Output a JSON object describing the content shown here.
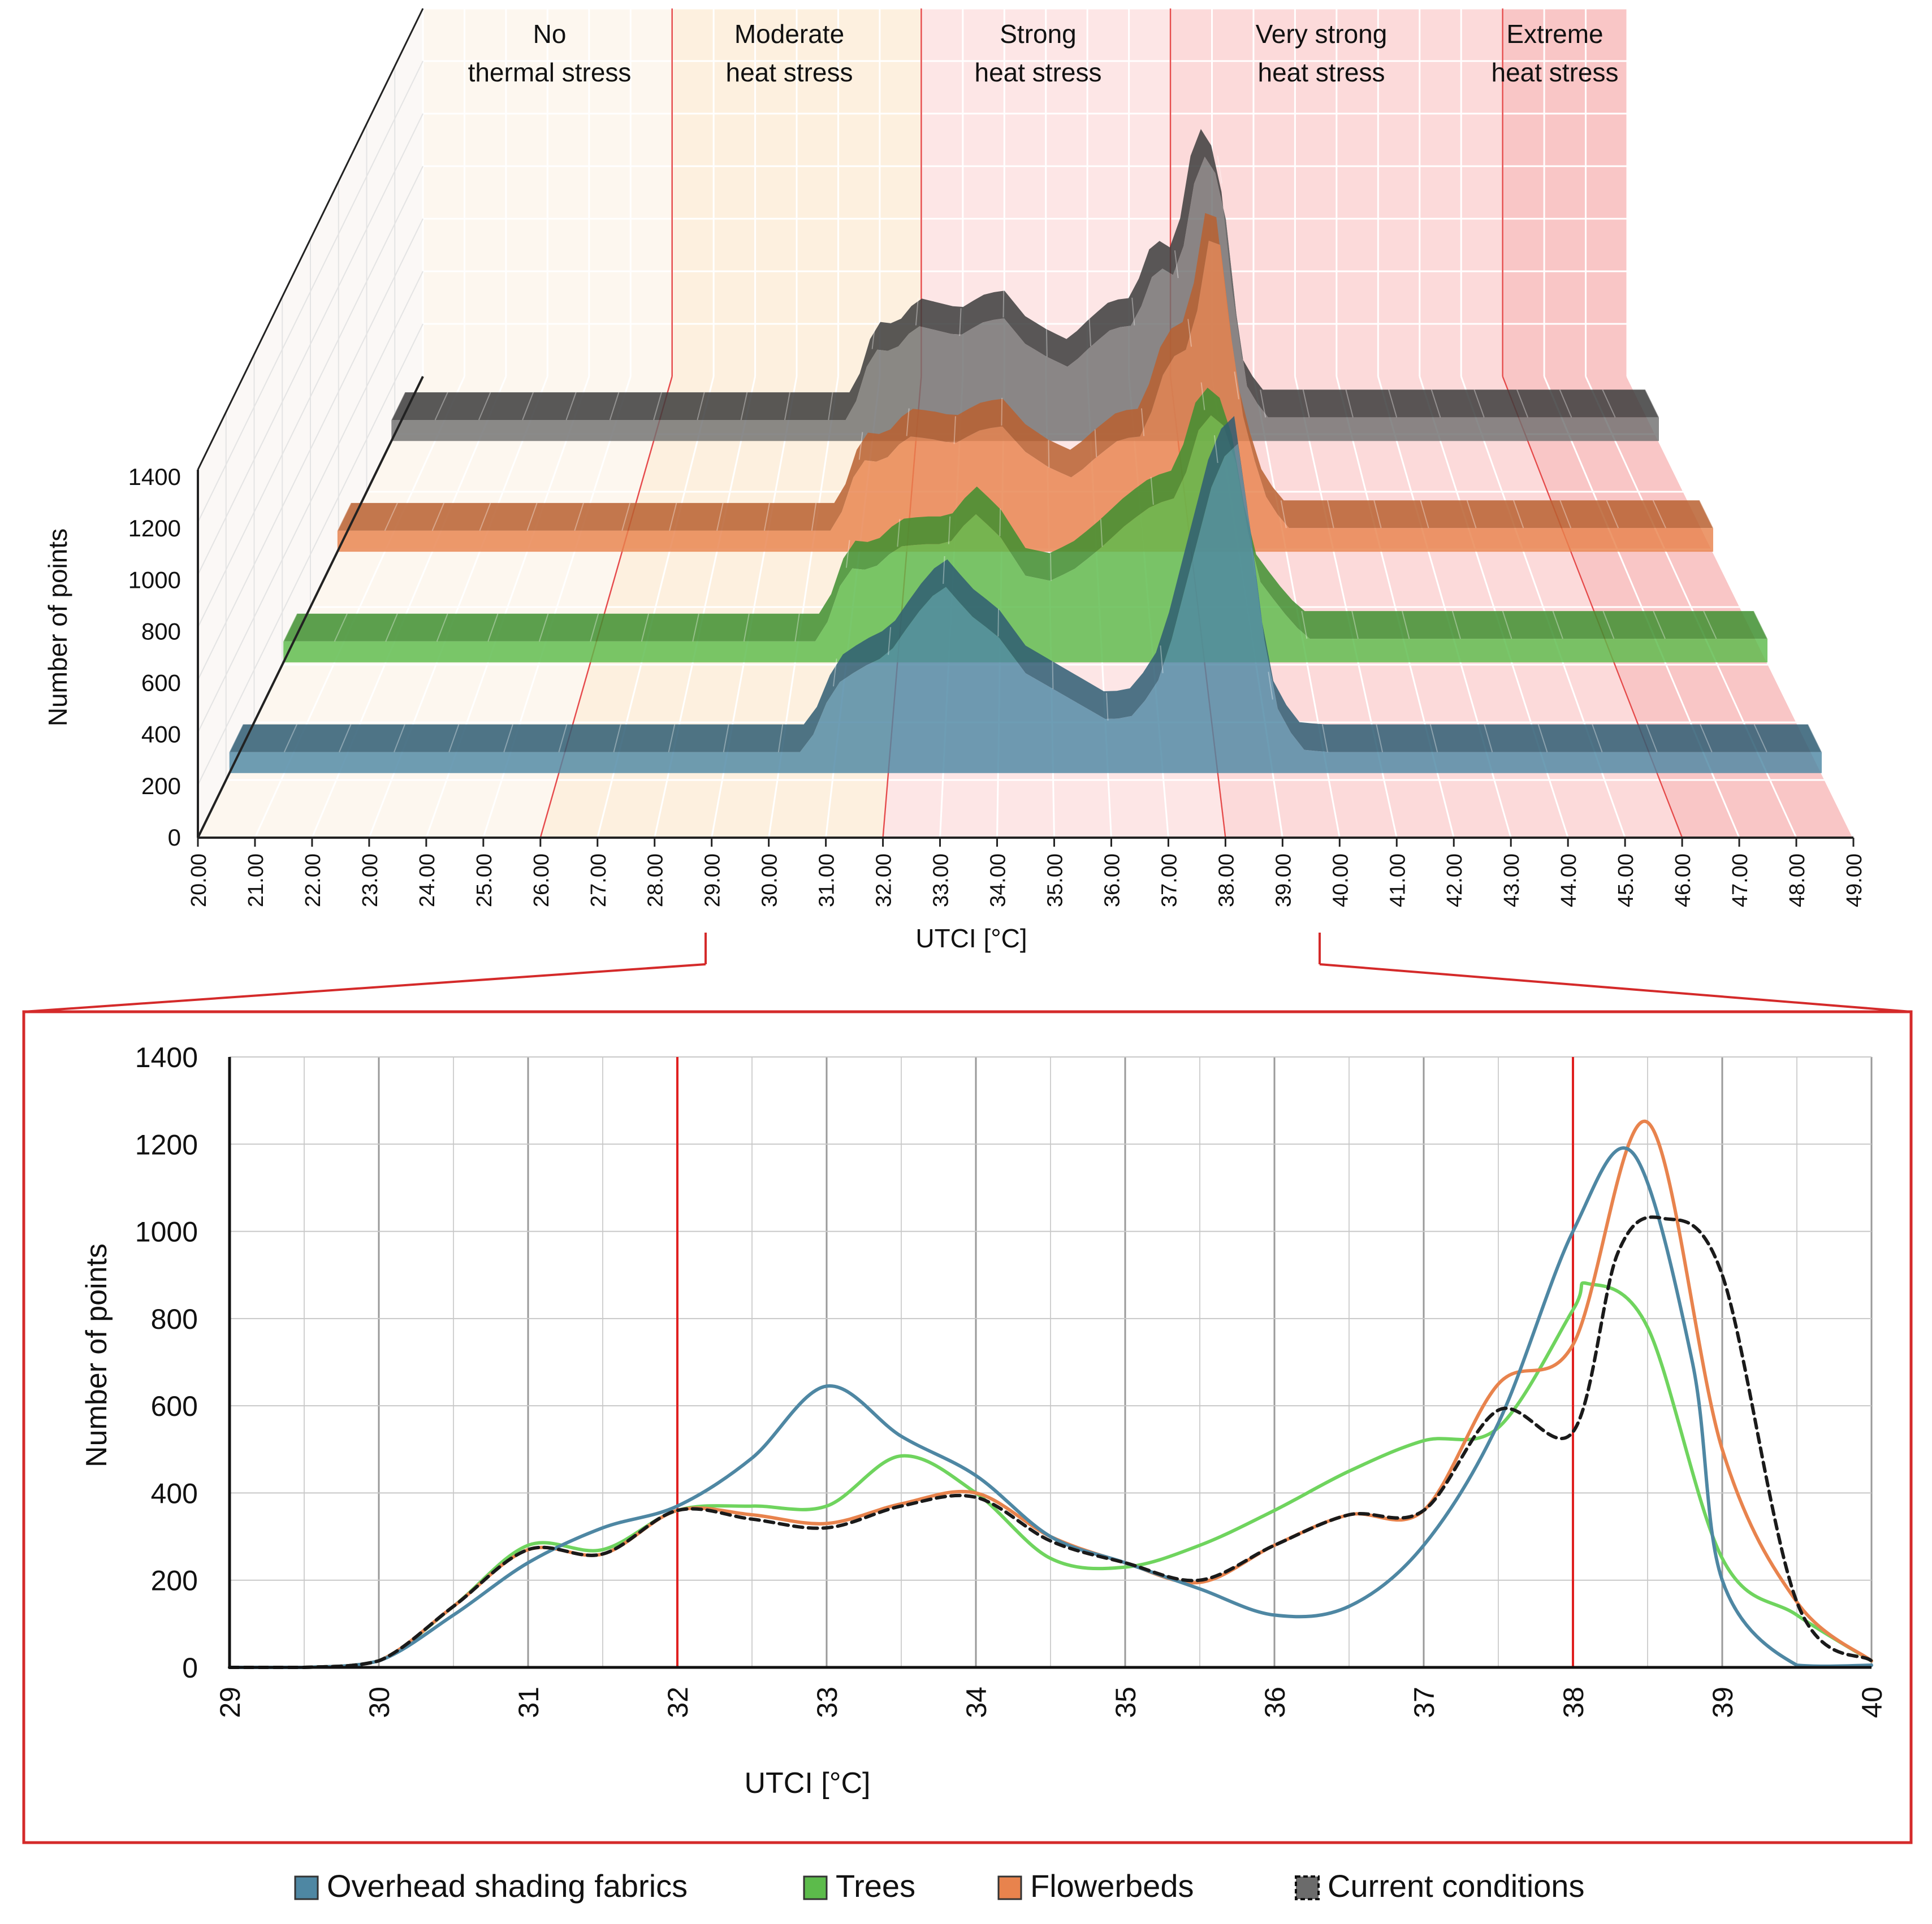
{
  "colors": {
    "overhead": "#4e87a3",
    "trees": "#5cbb4b",
    "flowerbeds": "#e8834d",
    "current": "#6b6b6b",
    "current_line": "#1a1a1a",
    "threshold": "#e02020",
    "frame": "#d42a2a",
    "zone_none": "#fdf7ef",
    "zone_moderate": "#fdf0df",
    "zone_strong": "#fde6e6",
    "zone_very": "#fcdada",
    "zone_extreme": "#f9c6c6"
  },
  "zones": [
    {
      "line1": "No",
      "line2": "thermal stress"
    },
    {
      "line1": "Moderate",
      "line2": "heat stress"
    },
    {
      "line1": "Strong",
      "line2": "heat stress"
    },
    {
      "line1": "Very strong",
      "line2": "heat stress"
    },
    {
      "line1": "Extreme",
      "line2": "heat stress"
    }
  ],
  "legend": [
    {
      "label": "Overhead shading fabrics",
      "color_key": "overhead"
    },
    {
      "label": "Trees",
      "color_key": "trees"
    },
    {
      "label": "Flowerbeds",
      "color_key": "flowerbeds"
    },
    {
      "label": "Current conditions",
      "color_key": "current"
    }
  ],
  "chart_data": [
    {
      "type": "area",
      "view": "3d-ribbon",
      "title": "",
      "xlabel": "UTCI [°C]",
      "ylabel": "Number of points",
      "categories": [
        "20.00",
        "21.00",
        "22.00",
        "23.00",
        "24.00",
        "25.00",
        "26.00",
        "27.00",
        "28.00",
        "29.00",
        "30.00",
        "31.00",
        "32.00",
        "33.00",
        "34.00",
        "35.00",
        "36.00",
        "37.00",
        "38.00",
        "39.00",
        "40.00",
        "41.00",
        "42.00",
        "43.00",
        "44.00",
        "45.00",
        "46.00",
        "47.00",
        "48.00",
        "49.00"
      ],
      "xlim": [
        20,
        49
      ],
      "ylim": [
        0,
        1400
      ],
      "yticks": [
        "0",
        "200",
        "400",
        "600",
        "800",
        "1000",
        "1200",
        "1400"
      ],
      "zone_bounds": [
        26,
        32,
        38,
        46
      ],
      "series": [
        {
          "name": "Overhead shading fabrics",
          "x": [
            29,
            30,
            30.5,
            31,
            31.5,
            32,
            32.5,
            33,
            33.5,
            34,
            34.5,
            35,
            35.5,
            36,
            36.5,
            37,
            37.5,
            38,
            38.4,
            38.8,
            39,
            39.5,
            40
          ],
          "values": [
            0,
            0,
            0,
            250,
            320,
            370,
            520,
            640,
            520,
            440,
            300,
            240,
            180,
            120,
            140,
            300,
            700,
            1100,
            1180,
            500,
            200,
            10,
            0
          ]
        },
        {
          "name": "Trees",
          "x": [
            29,
            30,
            30.5,
            31,
            31.5,
            32,
            32.5,
            33,
            33.5,
            34,
            34.5,
            35,
            35.5,
            36,
            36.5,
            37,
            37.5,
            38,
            38.5,
            39,
            39.5,
            40
          ],
          "values": [
            0,
            0,
            0,
            280,
            270,
            360,
            370,
            370,
            490,
            400,
            250,
            230,
            280,
            360,
            450,
            520,
            550,
            880,
            800,
            250,
            120,
            10
          ]
        },
        {
          "name": "Flowerbeds",
          "x": [
            29,
            30,
            30.5,
            31,
            31.5,
            32,
            32.5,
            33,
            33.5,
            34,
            34.5,
            35,
            35.5,
            36,
            36.5,
            37,
            37.5,
            38,
            38.5,
            39,
            39.5,
            40
          ],
          "values": [
            0,
            0,
            0,
            270,
            260,
            360,
            350,
            330,
            380,
            400,
            300,
            240,
            200,
            280,
            350,
            360,
            650,
            700,
            1250,
            500,
            150,
            10
          ]
        },
        {
          "name": "Current conditions",
          "x": [
            29,
            30,
            30.5,
            31,
            31.5,
            32,
            32.5,
            33,
            33.5,
            34,
            34.5,
            35,
            35.5,
            36,
            36.5,
            37,
            37.5,
            38,
            38.5,
            39,
            39.5,
            40
          ],
          "values": [
            0,
            0,
            0,
            270,
            260,
            360,
            340,
            320,
            370,
            390,
            290,
            240,
            200,
            280,
            350,
            360,
            590,
            540,
            1030,
            900,
            150,
            10
          ]
        }
      ]
    },
    {
      "type": "line",
      "title": "",
      "xlabel": "UTCI [°C]",
      "ylabel": "Number of points",
      "xlim": [
        29,
        40
      ],
      "ylim": [
        0,
        1400
      ],
      "xticks": [
        "29",
        "30",
        "31",
        "32",
        "33",
        "34",
        "35",
        "36",
        "37",
        "38",
        "39",
        "40"
      ],
      "yticks": [
        "0",
        "200",
        "400",
        "600",
        "800",
        "1000",
        "1200",
        "1400"
      ],
      "threshold_x": [
        32,
        38
      ],
      "series": [
        {
          "name": "Overhead shading fabrics",
          "style": "solid",
          "x": [
            29,
            29.5,
            30,
            30.5,
            31,
            31.5,
            32,
            32.5,
            33,
            33.5,
            34,
            34.5,
            35,
            35.5,
            36,
            36.5,
            37,
            37.5,
            38,
            38.4,
            38.8,
            39,
            39.5,
            40
          ],
          "values": [
            0,
            0,
            15,
            120,
            240,
            320,
            370,
            480,
            645,
            530,
            440,
            300,
            240,
            180,
            120,
            140,
            280,
            560,
            1000,
            1180,
            700,
            200,
            5,
            5
          ]
        },
        {
          "name": "Trees",
          "style": "solid",
          "x": [
            29,
            29.5,
            30,
            30.5,
            31,
            31.5,
            32,
            32.5,
            33,
            33.5,
            34,
            34.5,
            35,
            35.5,
            36,
            36.5,
            37,
            37.5,
            38,
            38.1,
            38.5,
            39,
            39.5,
            40
          ],
          "values": [
            0,
            0,
            15,
            140,
            280,
            270,
            360,
            370,
            370,
            485,
            400,
            250,
            230,
            280,
            360,
            450,
            520,
            550,
            820,
            880,
            780,
            250,
            120,
            15
          ]
        },
        {
          "name": "Flowerbeds",
          "style": "solid",
          "x": [
            29,
            29.5,
            30,
            30.5,
            31,
            31.5,
            32,
            32.5,
            33,
            33.5,
            34,
            34.5,
            35,
            35.5,
            36,
            36.5,
            37,
            37.5,
            38,
            38.5,
            39,
            39.5,
            40
          ],
          "values": [
            0,
            0,
            15,
            140,
            270,
            260,
            360,
            350,
            330,
            375,
            400,
            300,
            240,
            195,
            280,
            350,
            360,
            650,
            740,
            1250,
            500,
            150,
            15
          ]
        },
        {
          "name": "Current conditions",
          "style": "dashed",
          "x": [
            29,
            29.5,
            30,
            30.5,
            31,
            31.5,
            32,
            32.5,
            33,
            33.5,
            34,
            34.5,
            35,
            35.5,
            36,
            36.5,
            37,
            37.5,
            38,
            38.3,
            38.6,
            39,
            39.5,
            40
          ],
          "values": [
            0,
            0,
            15,
            140,
            270,
            260,
            360,
            340,
            320,
            370,
            390,
            290,
            240,
            200,
            280,
            350,
            360,
            590,
            540,
            950,
            1030,
            900,
            150,
            15
          ]
        }
      ]
    }
  ]
}
